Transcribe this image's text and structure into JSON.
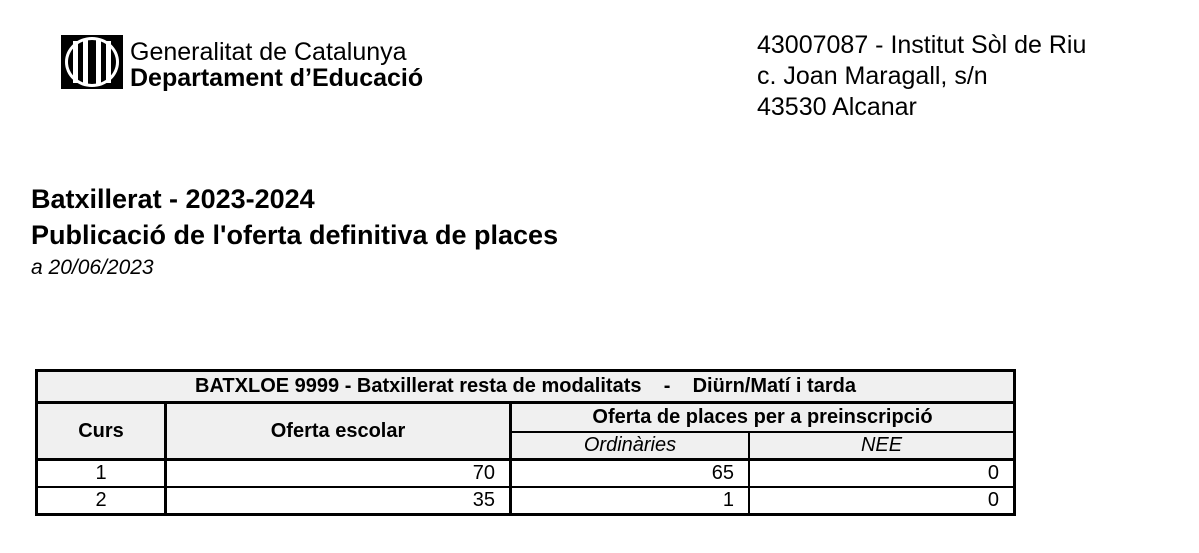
{
  "logo": {
    "line1": "Generalitat de Catalunya",
    "line2": "Departament d’Educació"
  },
  "school": {
    "code_name": "43007087 - Institut Sòl de Riu",
    "street": "c. Joan Maragall, s/n",
    "city": "43530 Alcanar"
  },
  "heading": {
    "title": "Batxillerat - 2023-2024",
    "subtitle": "Publicació de l'oferta definitiva de places",
    "date": "a 20/06/2023"
  },
  "table": {
    "title": "BATXLOE 9999 - Batxillerat resta de modalitats    -    Diürn/Matí i tarda",
    "col_curs": "Curs",
    "col_oferta": "Oferta escolar",
    "col_preinscripcio": "Oferta de places per a preinscripció",
    "sub_ordinaries": "Ordinàries",
    "sub_nee": "NEE",
    "rows": [
      {
        "curs": "1",
        "oferta": "70",
        "ordinaries": "65",
        "nee": "0"
      },
      {
        "curs": "2",
        "oferta": "35",
        "ordinaries": "1",
        "nee": "0"
      }
    ]
  }
}
